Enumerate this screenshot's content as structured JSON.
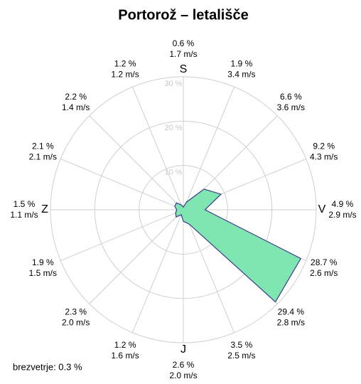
{
  "chart_data": {
    "type": "windrose",
    "title": "Portorož – letališče",
    "categories": [
      "S",
      null,
      null,
      null,
      "V",
      null,
      null,
      null,
      "J",
      null,
      null,
      null,
      "Z",
      null,
      null,
      null
    ],
    "values": [
      0.6,
      1.9,
      6.6,
      9.2,
      4.9,
      28.7,
      29.4,
      3.5,
      2.6,
      1.2,
      2.3,
      1.9,
      1.5,
      2.1,
      2.2,
      1.2
    ],
    "value_labels": [
      "0.6 %",
      "1.9 %",
      "6.6 %",
      "9.2 %",
      "4.9 %",
      "28.7 %",
      "29.4 %",
      "3.5 %",
      "2.6 %",
      "1.2 %",
      "2.3 %",
      "1.9 %",
      "1.5 %",
      "2.1 %",
      "2.2 %",
      "1.2 %"
    ],
    "speed_labels": [
      "1.7 m/s",
      "3.4 m/s",
      "3.6 m/s",
      "4.3 m/s",
      "2.9 m/s",
      "2.6 m/s",
      "2.8 m/s",
      "2.5 m/s",
      "2.0 m/s",
      "1.6 m/s",
      "2.0 m/s",
      "1.5 m/s",
      "1.1 m/s",
      "2.1 m/s",
      "1.4 m/s",
      "1.2 m/s"
    ],
    "color": "#7fe6b2",
    "rlim": [
      0,
      30
    ],
    "rticks": [
      {
        "value": 10,
        "label": "10 %"
      },
      {
        "value": 20,
        "label": "20 %"
      },
      {
        "value": 30,
        "label": "30 %"
      }
    ],
    "calm": "brezvetrje: 0.3 %",
    "grid": true
  }
}
